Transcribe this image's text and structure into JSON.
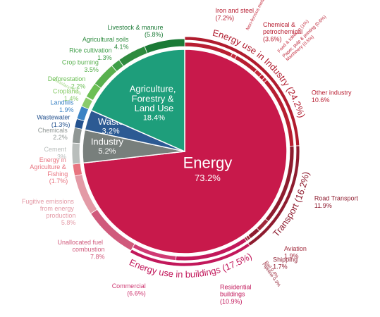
{
  "chart_data": {
    "type": "sunburst",
    "sectors": [
      {
        "name": "Energy",
        "value": 73.2,
        "value_label": "73.2%",
        "color": "#c8194b",
        "children": [
          {
            "name": "Energy use in Industry",
            "value": 24.2,
            "value_label": "(24.2%)",
            "color": "#b01c2e",
            "children": [
              {
                "name": "Iron and steel",
                "value": 7.2,
                "value_label": "(7.2%)",
                "color": "#b81e31"
              },
              {
                "name": "Non-ferrous metals",
                "value": 0.7,
                "value_label": "(0.7%)",
                "color": "#c42a3c"
              },
              {
                "name": "Chemical & petrochemical",
                "value": 3.6,
                "value_label": "(3.6%)",
                "color": "#b81e31"
              },
              {
                "name": "Food & tobacco",
                "value": 1,
                "value_label": "(1%)",
                "color": "#c42a3c"
              },
              {
                "name": "Paper, pulp & printing",
                "value": 0.6,
                "value_label": "(0.6%)",
                "color": "#b81e31"
              },
              {
                "name": "Machinery",
                "value": 0.5,
                "value_label": "(0.5%)",
                "color": "#c42a3c"
              },
              {
                "name": "Other industry",
                "value": 10.6,
                "value_label": "10.6%",
                "color": "#b81e31"
              }
            ]
          },
          {
            "name": "Transport",
            "value": 16.2,
            "value_label": "(16.2%)",
            "color": "#8e1c2f",
            "children": [
              {
                "name": "Road Transport",
                "value": 11.9,
                "value_label": "11.9%",
                "color": "#8e1c2f"
              },
              {
                "name": "Aviation",
                "value": 1.9,
                "value_label": "1.9%",
                "color": "#a0283a"
              },
              {
                "name": "Shipping",
                "value": 1.7,
                "value_label": "1.7%",
                "color": "#8e1c2f"
              },
              {
                "name": "Rail",
                "value": 0.4,
                "value_label": "0.4%",
                "color": "#a0283a"
              },
              {
                "name": "Pipeline",
                "value": 0.3,
                "value_label": "0.3%",
                "color": "#8e1c2f"
              }
            ]
          },
          {
            "name": "Energy use in buildings",
            "value": 17.5,
            "value_label": "(17.5%)",
            "color": "#c2185b",
            "children": [
              {
                "name": "Residential buildings",
                "value": 10.9,
                "value_label": "(10.9%)",
                "color": "#c2185b"
              },
              {
                "name": "Commercial",
                "value": 6.6,
                "value_label": "(6.6%)",
                "color": "#cf3a73"
              }
            ]
          },
          {
            "name": "Unallocated fuel combustion",
            "value": 7.8,
            "value_label": "7.8%",
            "color": "#d05a7c"
          },
          {
            "name": "Fugitive emissions from energy production",
            "value": 5.8,
            "value_label": "5.8%",
            "color": "#e39aa6"
          },
          {
            "name": "Energy in Agriculture & Fishing",
            "value": 1.7,
            "value_label": "(1.7%)",
            "color": "#e8737f"
          }
        ]
      },
      {
        "name": "Industry",
        "value": 5.2,
        "value_label": "5.2%",
        "color": "#787f7c",
        "children": [
          {
            "name": "Cement",
            "value": 3,
            "value_label": "3%",
            "color": "#b9bebc"
          },
          {
            "name": "Chemicals",
            "value": 2.2,
            "value_label": "2.2%",
            "color": "#8f9694"
          }
        ]
      },
      {
        "name": "Waste",
        "value": 3.2,
        "value_label": "3.2%",
        "color": "#2c5a93",
        "children": [
          {
            "name": "Wastewater",
            "value": 1.3,
            "value_label": "(1.3%)",
            "color": "#24528f"
          },
          {
            "name": "Landfills",
            "value": 1.9,
            "value_label": "1.9%",
            "color": "#3b83c4"
          }
        ]
      },
      {
        "name": "Agriculture, Forestry & Land Use",
        "value": 18.4,
        "value_label": "18.4%",
        "color": "#1e9e7b",
        "children": [
          {
            "name": "Cropland",
            "value": 1.4,
            "value_label": "1.4%",
            "color": "#8acb6b"
          },
          {
            "name": "Grassland",
            "value": 0.1,
            "value_label": "0.1%",
            "color": "#a6d98a"
          },
          {
            "name": "Deforestation",
            "value": 2.2,
            "value_label": "2.2%",
            "color": "#6cbf55"
          },
          {
            "name": "Crop burning",
            "value": 3.5,
            "value_label": "3.5%",
            "color": "#58b04e"
          },
          {
            "name": "Rice cultivation",
            "value": 1.3,
            "value_label": "1.3%",
            "color": "#3e9e48"
          },
          {
            "name": "Agricultural soils",
            "value": 4.1,
            "value_label": "4.1%",
            "color": "#2e8b3f"
          },
          {
            "name": "Livestock & manure",
            "value": 5.8,
            "value_label": "(5.8%)",
            "color": "#1b7a36"
          }
        ]
      }
    ]
  }
}
